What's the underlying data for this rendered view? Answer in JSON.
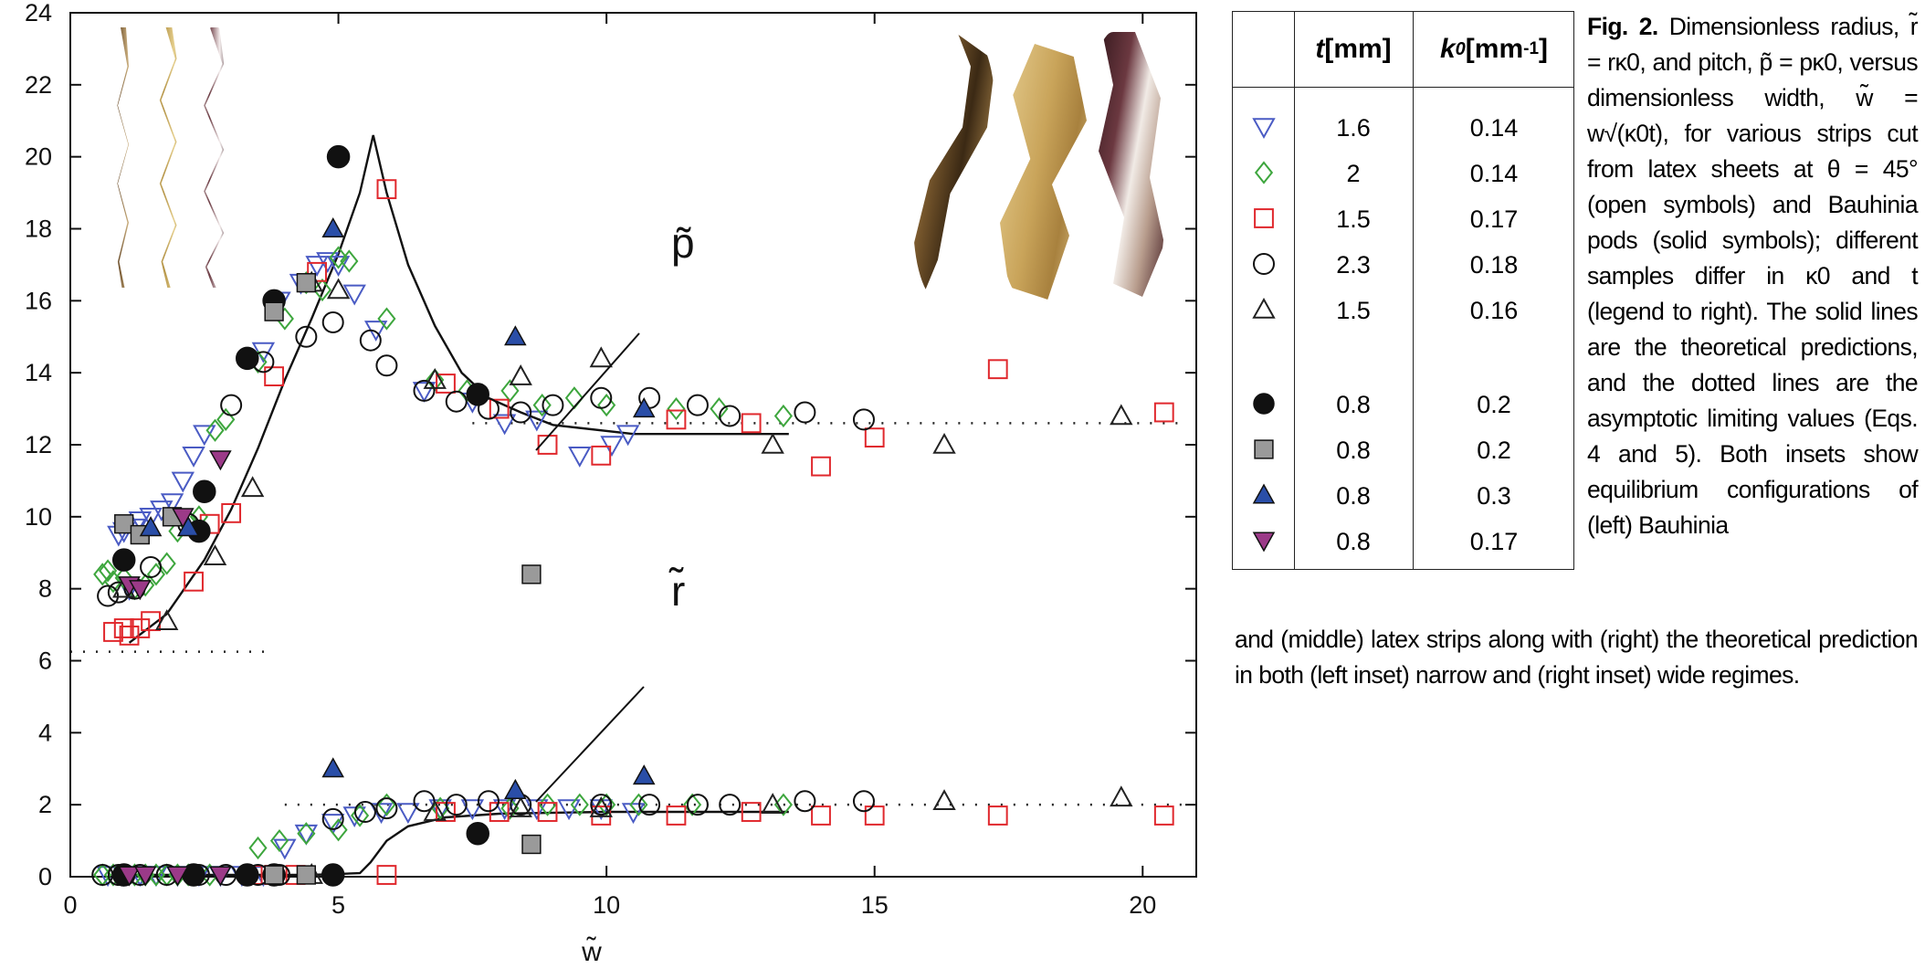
{
  "chart_data": {
    "type": "scatter",
    "xlim": [
      0,
      21
    ],
    "ylim": [
      0,
      24
    ],
    "x_ticks": [
      0,
      5,
      10,
      15,
      20
    ],
    "y_ticks": [
      0,
      2,
      4,
      6,
      8,
      10,
      12,
      14,
      16,
      18,
      20,
      22,
      24
    ],
    "xlabel": "w̃",
    "ylabel": "",
    "grid": false,
    "curve_labels": {
      "pitch": "p̃",
      "radius": "r̃"
    },
    "asymptotes": [
      {
        "y": 6.25,
        "x_range": [
          0,
          3.7
        ]
      },
      {
        "y": 12.6,
        "x_range": [
          7.5,
          20.8
        ]
      },
      {
        "y": 2.0,
        "x_range": [
          4.0,
          20.8
        ]
      }
    ],
    "theory_lines": [
      {
        "name": "",
        "points": [
          [
            1.1,
            6.5
          ],
          [
            1.8,
            7.3
          ],
          [
            2.5,
            8.8
          ],
          [
            3.0,
            10.2
          ],
          [
            3.5,
            11.9
          ],
          [
            4.0,
            13.8
          ],
          [
            4.5,
            15.5
          ],
          [
            5.0,
            17.3
          ],
          [
            5.4,
            19.0
          ],
          [
            5.65,
            20.6
          ],
          [
            5.9,
            19.0
          ],
          [
            6.3,
            17.0
          ],
          [
            6.8,
            15.3
          ],
          [
            7.3,
            14.0
          ],
          [
            7.8,
            13.3
          ],
          [
            8.4,
            12.9
          ],
          [
            9.0,
            12.55
          ],
          [
            10.5,
            12.3
          ],
          [
            13.4,
            12.3
          ]
        ]
      },
      {
        "name": "",
        "points": [
          [
            1.1,
            0.05
          ],
          [
            4.5,
            0.05
          ],
          [
            5.4,
            0.1
          ],
          [
            5.6,
            0.4
          ],
          [
            5.9,
            1.0
          ],
          [
            6.3,
            1.4
          ],
          [
            7.0,
            1.65
          ],
          [
            8.0,
            1.75
          ],
          [
            10.0,
            1.8
          ],
          [
            13.4,
            1.8
          ]
        ]
      }
    ],
    "series": [
      {
        "name": "1.6 / 0.14",
        "marker": "triangle-down-open",
        "color": "#4a5bc4",
        "x": [
          0.9,
          1.0,
          1.1,
          1.2,
          1.3,
          1.5,
          1.7,
          1.9,
          2.1,
          2.3,
          2.5,
          3.6,
          3.9,
          4.3,
          4.6,
          4.8,
          5.0,
          5.3,
          5.7,
          6.6,
          7.5,
          8.1,
          8.7,
          9.5,
          10.1,
          10.4,
          0.7,
          1.0,
          1.3,
          1.6,
          2.0,
          2.4,
          2.8,
          3.2,
          3.6,
          4.0,
          4.4,
          4.9,
          5.3,
          5.8,
          6.3,
          6.9,
          7.5,
          8.1,
          8.7,
          9.3,
          9.9,
          10.5
        ],
        "y": [
          9.5,
          9.6,
          8.0,
          9.7,
          9.9,
          10.0,
          10.2,
          10.4,
          11.0,
          11.7,
          12.3,
          14.6,
          16.0,
          16.5,
          17.0,
          17.1,
          17.0,
          16.2,
          15.2,
          13.5,
          13.2,
          12.6,
          12.7,
          11.7,
          12.0,
          12.3,
          0.05,
          0.05,
          0.05,
          0.05,
          0.05,
          0.05,
          0.05,
          0.05,
          0.05,
          0.8,
          1.2,
          1.5,
          1.7,
          1.8,
          1.8,
          1.9,
          1.9,
          1.9,
          1.9,
          1.9,
          1.9,
          1.8
        ]
      },
      {
        "name": "2 / 0.14",
        "marker": "diamond-open",
        "color": "#3da63d",
        "x": [
          0.6,
          0.7,
          0.8,
          1.0,
          1.2,
          1.4,
          1.6,
          1.8,
          2.0,
          2.2,
          2.4,
          2.7,
          2.9,
          3.5,
          4.0,
          4.4,
          4.7,
          5.0,
          5.2,
          5.9,
          6.8,
          7.4,
          8.2,
          8.8,
          9.4,
          10.0,
          11.3,
          12.1,
          13.3,
          0.6,
          0.8,
          1.0,
          1.2,
          1.4,
          1.6,
          1.8,
          2.0,
          2.2,
          2.6,
          3.5,
          3.9,
          4.4,
          5.0,
          5.4,
          5.9,
          6.9,
          8.2,
          8.9,
          9.5,
          10.0,
          10.6,
          11.6,
          13.3
        ],
        "y": [
          8.4,
          8.5,
          8.2,
          8.3,
          8.0,
          8.1,
          8.4,
          8.7,
          9.6,
          9.9,
          10.0,
          12.4,
          12.7,
          14.3,
          15.5,
          16.5,
          16.3,
          17.2,
          17.1,
          15.5,
          13.8,
          13.5,
          13.5,
          13.1,
          13.3,
          13.1,
          13.0,
          13.0,
          12.8,
          0.05,
          0.05,
          0.05,
          0.05,
          0.05,
          0.05,
          0.05,
          0.05,
          0.05,
          0.05,
          0.8,
          1.0,
          1.2,
          1.3,
          1.7,
          2.0,
          1.9,
          1.9,
          2.0,
          2.0,
          2.0,
          2.0,
          2.0,
          2.0
        ],
        "_": null
      },
      {
        "name": "1.5 / 0.17",
        "marker": "square-open",
        "color": "#e0282d",
        "x": [
          0.8,
          1.0,
          1.1,
          1.3,
          1.5,
          2.3,
          2.6,
          3.0,
          3.8,
          4.6,
          5.9,
          7.0,
          8.0,
          8.9,
          9.9,
          11.3,
          12.7,
          14.0,
          15.0,
          17.3,
          20.4,
          3.4,
          3.8,
          4.2,
          5.9,
          7.0,
          8.0,
          8.9,
          9.9,
          11.3,
          12.7,
          14.0,
          15.0,
          17.3,
          20.4
        ],
        "y": [
          6.8,
          6.9,
          6.7,
          6.9,
          7.1,
          8.2,
          9.8,
          10.1,
          13.9,
          16.8,
          19.1,
          13.7,
          13.0,
          12.0,
          11.7,
          12.7,
          12.6,
          11.4,
          12.2,
          14.1,
          12.9,
          0.05,
          0.05,
          0.05,
          0.05,
          1.8,
          1.8,
          1.8,
          1.7,
          1.7,
          1.8,
          1.7,
          1.7,
          1.7,
          1.7
        ]
      },
      {
        "name": "2.3 / 0.18",
        "marker": "circle-open",
        "color": "#111111",
        "x": [
          0.7,
          0.9,
          1.2,
          1.5,
          2.2,
          3.0,
          3.6,
          4.4,
          4.9,
          5.6,
          5.9,
          6.6,
          7.2,
          7.8,
          8.4,
          9.0,
          9.9,
          10.8,
          11.7,
          12.3,
          13.7,
          14.8,
          0.6,
          0.9,
          1.3,
          1.8,
          2.4,
          2.9,
          3.5,
          3.9,
          4.9,
          5.5,
          5.9,
          6.6,
          7.2,
          7.8,
          8.4,
          9.9,
          10.8,
          11.7,
          12.3,
          13.7,
          14.8
        ],
        "y": [
          7.8,
          7.9,
          8.0,
          8.6,
          9.8,
          13.1,
          14.3,
          15.0,
          15.4,
          14.9,
          14.2,
          13.5,
          13.2,
          13.0,
          12.9,
          13.1,
          13.3,
          13.3,
          13.1,
          12.8,
          12.9,
          12.7,
          0.05,
          0.05,
          0.05,
          0.05,
          0.05,
          0.05,
          0.05,
          0.05,
          1.6,
          1.8,
          1.9,
          2.1,
          2.0,
          2.1,
          2.0,
          2.0,
          2.0,
          2.0,
          2.0,
          2.1,
          2.1
        ]
      },
      {
        "name": "1.5 / 0.16",
        "marker": "triangle-up-open",
        "color": "#222222",
        "x": [
          1.0,
          1.8,
          2.7,
          3.4,
          4.5,
          5.0,
          6.8,
          8.4,
          9.9,
          13.1,
          16.3,
          19.6,
          4.5,
          6.8,
          8.4,
          9.9,
          13.1,
          16.3,
          19.6
        ],
        "y": [
          8.0,
          7.1,
          8.9,
          10.8,
          16.5,
          16.3,
          13.8,
          13.9,
          14.4,
          12.0,
          12.0,
          12.8,
          0.05,
          1.8,
          1.9,
          1.9,
          2.0,
          2.1,
          2.2
        ]
      },
      {
        "name": "0.8 / 0.2 (solid circle)",
        "marker": "circle-filled",
        "color": "#111111",
        "x": [
          1.0,
          2.4,
          2.5,
          3.3,
          3.8,
          5.0,
          7.6,
          1.0,
          2.3,
          3.3,
          3.8,
          4.9,
          7.6
        ],
        "y": [
          8.8,
          9.6,
          10.7,
          14.4,
          16.0,
          20.0,
          13.4,
          0.05,
          0.05,
          0.05,
          0.05,
          0.05,
          1.2
        ]
      },
      {
        "name": "0.8 / 0.2 (solid square)",
        "marker": "square-filled",
        "color": "#9a9a9a",
        "x": [
          1.0,
          1.3,
          1.9,
          3.8,
          4.4,
          8.6,
          3.8,
          4.4,
          8.6
        ],
        "y": [
          9.8,
          9.5,
          10.0,
          15.7,
          16.5,
          8.4,
          0.05,
          0.05,
          0.9
        ]
      },
      {
        "name": "0.8 / 0.3",
        "marker": "triangle-up-filled",
        "color": "#2a4ea8",
        "x": [
          1.5,
          2.2,
          4.9,
          8.3,
          10.7,
          4.9,
          8.3,
          10.7
        ],
        "y": [
          9.7,
          9.7,
          18.0,
          15.0,
          13.0,
          3.0,
          2.4,
          2.8
        ]
      },
      {
        "name": "0.8 / 0.17",
        "marker": "triangle-down-filled",
        "color": "#9b3a88",
        "x": [
          1.1,
          1.3,
          2.1,
          2.8,
          1.1,
          1.4,
          2.0,
          2.8
        ],
        "y": [
          8.1,
          8.0,
          10.0,
          11.6,
          0.05,
          0.05,
          0.05,
          0.05
        ]
      }
    ]
  },
  "legend": {
    "headers": {
      "t_symbol": "t",
      "t_unit": " [mm]",
      "k_symbol": "k",
      "k_sub": "0",
      "k_unit": " [mm",
      "k_sup": "-1",
      "k_close": "]"
    },
    "rows": [
      {
        "marker": "triangle-down-open",
        "color": "#4a5bc4",
        "t": "1.6",
        "k": "0.14"
      },
      {
        "marker": "diamond-open",
        "color": "#3da63d",
        "t": "2",
        "k": "0.14"
      },
      {
        "marker": "square-open",
        "color": "#e0282d",
        "t": "1.5",
        "k": "0.17"
      },
      {
        "marker": "circle-open",
        "color": "#111111",
        "t": "2.3",
        "k": "0.18"
      },
      {
        "marker": "triangle-up-open",
        "color": "#222222",
        "t": "1.5",
        "k": "0.16"
      },
      {
        "marker": "circle-filled",
        "color": "#111111",
        "t": "0.8",
        "k": "0.2"
      },
      {
        "marker": "square-filled",
        "color": "#9a9a9a",
        "t": "0.8",
        "k": "0.2"
      },
      {
        "marker": "triangle-up-filled",
        "color": "#2a4ea8",
        "t": "0.8",
        "k": "0.3"
      },
      {
        "marker": "triangle-down-filled",
        "color": "#9b3a88",
        "t": "0.8",
        "k": "0.17"
      }
    ]
  },
  "caption": {
    "fig": "Fig. 2.",
    "top": "Dimensionless radius, r̃ = rκ0, and pitch, p̃ = pκ0, versus dimensionless width, w̃ = w√(κ0t), for various strips cut from latex sheets at θ = 45° (open symbols) and Bauhinia pods (solid symbols); different samples differ in κ0 and t (legend to right). The solid lines are the theoretical predictions, and the dotted lines are the asymptotic limiting values (Eqs. 4 and 5). Both insets show equilibrium configurations of (left) Bauhinia",
    "bottom": "and (middle) latex strips along with (right) the theoretical prediction in both (left inset) narrow and (right inset) wide regimes."
  }
}
